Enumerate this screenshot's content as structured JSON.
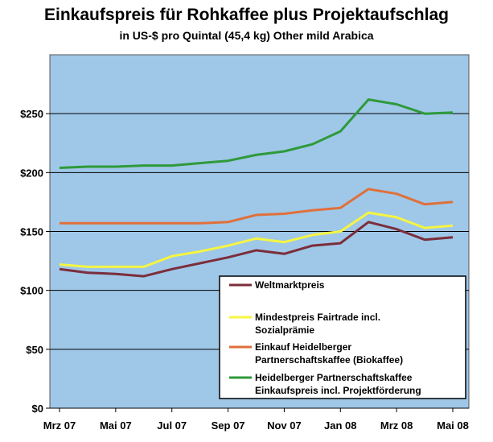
{
  "chart_data": {
    "type": "line",
    "title": "Einkaufspreis für Rohkaffee plus Projektaufschlag",
    "subtitle": "in US-$ pro Quintal (45,4 kg) Other mild Arabica",
    "x": [
      "2007-03",
      "2007-04",
      "2007-05",
      "2007-06",
      "2007-07",
      "2007-08",
      "2007-09",
      "2007-10",
      "2007-11",
      "2007-12",
      "2008-01",
      "2008-02",
      "2008-03",
      "2008-04",
      "2008-05"
    ],
    "x_tick_labels": [
      "Mrz 07",
      "Mai 07",
      "Jul 07",
      "Sep 07",
      "Nov 07",
      "Jan 08",
      "Mrz 08",
      "Mai 08"
    ],
    "y_tick_labels": [
      "$0",
      "$50",
      "$100",
      "$150",
      "$200",
      "$250"
    ],
    "y_ticks": [
      0,
      50,
      100,
      150,
      200,
      250
    ],
    "ylim": [
      0,
      300
    ],
    "grid": true,
    "background_color": "#9fc7e8",
    "series": [
      {
        "name": "Weltmarktpreis",
        "color": "#7b2e3b",
        "values": [
          118,
          115,
          114,
          112,
          118,
          123,
          128,
          134,
          131,
          138,
          140,
          158,
          152,
          143,
          145
        ]
      },
      {
        "name": "Mindestpreis Fairtrade incl. Sozialprämie",
        "name_lines": [
          "Mindestpreis Fairtrade incl.",
          "Sozialprämie"
        ],
        "color": "#f5f542",
        "values": [
          122,
          120,
          120,
          120,
          129,
          133,
          138,
          144,
          141,
          147,
          150,
          166,
          162,
          153,
          155
        ]
      },
      {
        "name": "Einkauf Heidelberger Partnerschaftskaffee (Biokaffee)",
        "name_lines": [
          "Einkauf Heidelberger",
          "Partnerschaftskaffee (Biokaffee)"
        ],
        "color": "#e0703a",
        "values": [
          157,
          157,
          157,
          157,
          157,
          157,
          158,
          164,
          165,
          168,
          170,
          186,
          182,
          173,
          175
        ]
      },
      {
        "name": "Heidelberger Partnerschaftskaffee Einkaufspreis incl. Projektförderung",
        "name_lines": [
          "Heidelberger Partnerschaftskaffee",
          "Einkaufspreis incl. Projektförderung"
        ],
        "color": "#2e9a3a",
        "values": [
          204,
          205,
          205,
          206,
          206,
          208,
          210,
          215,
          218,
          224,
          235,
          262,
          258,
          250,
          251
        ]
      }
    ],
    "legend_position": "bottom-right"
  }
}
